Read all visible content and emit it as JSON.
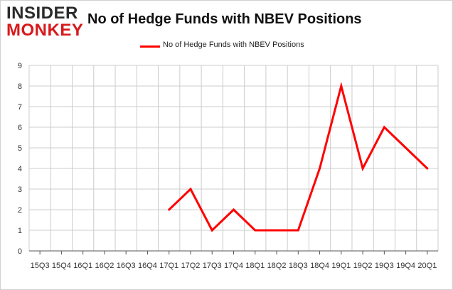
{
  "logo": {
    "line1": "INSIDER",
    "line2": "MONKEY"
  },
  "colors": {
    "series": "#ff0000",
    "grid": "#cccccc",
    "axis": "#555555",
    "logo_accent": "#d7191c"
  },
  "chart_data": {
    "type": "line",
    "title": "No of Hedge Funds with NBEV Positions",
    "xlabel": "",
    "ylabel": "",
    "legend_position": "top-center",
    "grid": true,
    "ylim": [
      0,
      9
    ],
    "yticks": [
      0,
      1,
      2,
      3,
      4,
      5,
      6,
      7,
      8,
      9
    ],
    "categories": [
      "15Q3",
      "15Q4",
      "16Q1",
      "16Q2",
      "16Q3",
      "16Q4",
      "17Q1",
      "17Q2",
      "17Q3",
      "17Q4",
      "18Q1",
      "18Q2",
      "18Q3",
      "18Q4",
      "19Q1",
      "19Q2",
      "19Q3",
      "19Q4",
      "20Q1"
    ],
    "series": [
      {
        "name": "No of Hedge Funds with NBEV  Positions",
        "values": [
          null,
          null,
          null,
          null,
          null,
          null,
          2,
          3,
          1,
          2,
          1,
          1,
          1,
          4,
          8,
          4,
          6,
          5,
          4
        ]
      }
    ]
  }
}
